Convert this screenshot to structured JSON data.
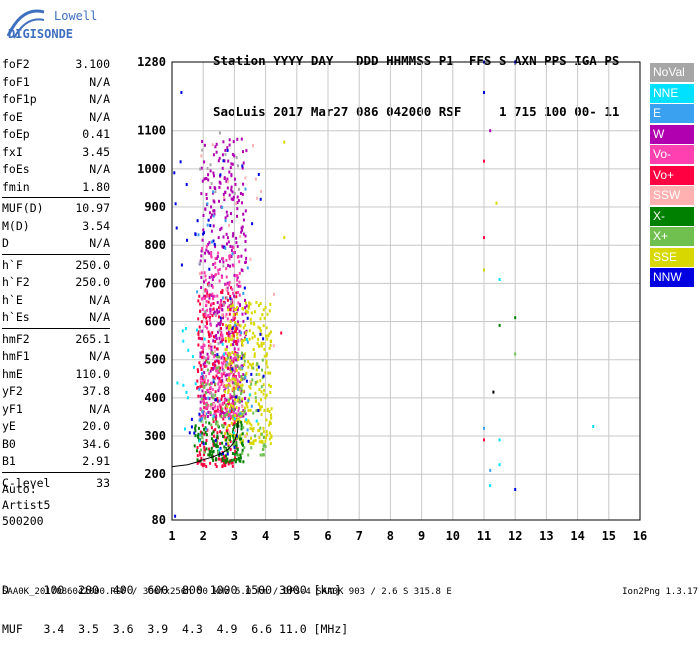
{
  "logo": {
    "top": "Lowell",
    "bottom": "DIGISONDE"
  },
  "header": {
    "line1": "Station YYYY DAY   DDD HHMMSS P1  FFS S AXN PPS IGA PS",
    "line2": "SaoLuis 2017 Mar27 086 042000 RSF     1 715 100 00- 11"
  },
  "params": [
    [
      {
        "k": "foF2",
        "v": "3.100"
      },
      {
        "k": "foF1",
        "v": "N/A"
      },
      {
        "k": "foF1p",
        "v": "N/A"
      },
      {
        "k": "foE",
        "v": "N/A"
      },
      {
        "k": "foEp",
        "v": "0.41"
      },
      {
        "k": "fxI",
        "v": "3.45"
      },
      {
        "k": "foEs",
        "v": "N/A"
      },
      {
        "k": "fmin",
        "v": "1.80"
      }
    ],
    [
      {
        "k": "MUF(D)",
        "v": "10.97"
      },
      {
        "k": "M(D)",
        "v": "3.54"
      },
      {
        "k": "D",
        "v": "N/A"
      }
    ],
    [
      {
        "k": "h`F",
        "v": "250.0"
      },
      {
        "k": "h`F2",
        "v": "250.0"
      },
      {
        "k": "h`E",
        "v": "N/A"
      },
      {
        "k": "h`Es",
        "v": "N/A"
      }
    ],
    [
      {
        "k": "hmF2",
        "v": "265.1"
      },
      {
        "k": "hmF1",
        "v": "N/A"
      },
      {
        "k": "hmE",
        "v": "110.0"
      },
      {
        "k": "yF2",
        "v": "37.8"
      },
      {
        "k": "yF1",
        "v": "N/A"
      },
      {
        "k": "yE",
        "v": "20.0"
      },
      {
        "k": "B0",
        "v": "34.6"
      },
      {
        "k": "B1",
        "v": "2.91"
      }
    ],
    [
      {
        "k": "C-level",
        "v": "33"
      }
    ]
  ],
  "auto": {
    "line1": "Auto:",
    "line2": "Artist5",
    "line3": "500200"
  },
  "legend": [
    {
      "label": "NoVal",
      "color": "#a6a6a6"
    },
    {
      "label": "NNE",
      "color": "#00e0ff"
    },
    {
      "label": "E",
      "color": "#3aa0f0"
    },
    {
      "label": "W",
      "color": "#b000b0"
    },
    {
      "label": "Vo-",
      "color": "#ff40b0"
    },
    {
      "label": "Vo+",
      "color": "#ff0040"
    },
    {
      "label": "SSW",
      "color": "#ffb0b0"
    },
    {
      "label": "X-",
      "color": "#008000"
    },
    {
      "label": "X+",
      "color": "#70c050"
    },
    {
      "label": "SSE",
      "color": "#d8d800"
    },
    {
      "label": "NNW",
      "color": "#0000e0"
    }
  ],
  "muf_table": {
    "line1": "D     100  200  400  600  800 1000 1500 3000 [km]",
    "line2": "MUF   3.4  3.5  3.6  3.9  4.3  4.9  6.6 11.0 [MHz]"
  },
  "footer": {
    "left": "SAA0K_2017086042000.RSF / 300fx256h 50 kHz 5.0 km / DPS-4 SAA0K 903 / 2.6 S 315.8 E",
    "right": "Ion2Png 1.3.17"
  },
  "chart_data": {
    "type": "scatter",
    "title": "",
    "xlabel": "",
    "ylabel": "",
    "xlim": [
      1,
      16
    ],
    "ylim": [
      80,
      1280
    ],
    "x_ticks": [
      1,
      2,
      3,
      4,
      5,
      6,
      7,
      8,
      9,
      10,
      11,
      12,
      13,
      14,
      15,
      16
    ],
    "y_ticks": [
      80,
      200,
      300,
      400,
      500,
      600,
      700,
      800,
      900,
      1000,
      1100,
      1280
    ],
    "grid": true,
    "trace_curve": {
      "x": [
        1.0,
        1.5,
        1.8,
        2.0,
        2.3,
        2.6,
        2.8,
        3.0,
        3.1,
        3.12
      ],
      "y": [
        220,
        225,
        232,
        238,
        245,
        255,
        265,
        285,
        310,
        340
      ]
    },
    "point_clusters": [
      {
        "color": "#b000b0",
        "xr": [
          1.9,
          3.4
        ],
        "yr": [
          350,
          1080
        ],
        "n": 420
      },
      {
        "color": "#ff0040",
        "xr": [
          1.8,
          3.1
        ],
        "yr": [
          220,
          700
        ],
        "n": 280
      },
      {
        "color": "#ff40b0",
        "xr": [
          1.9,
          3.2
        ],
        "yr": [
          350,
          800
        ],
        "n": 220
      },
      {
        "color": "#d8d800",
        "xr": [
          2.7,
          4.2
        ],
        "yr": [
          280,
          650
        ],
        "n": 300
      },
      {
        "color": "#008000",
        "xr": [
          1.7,
          3.3
        ],
        "yr": [
          230,
          340
        ],
        "n": 120
      },
      {
        "color": "#70c050",
        "xr": [
          1.9,
          4.0
        ],
        "yr": [
          250,
          520
        ],
        "n": 120
      },
      {
        "color": "#0000e0",
        "xr": [
          1.0,
          4.0
        ],
        "yr": [
          250,
          1080
        ],
        "n": 60
      },
      {
        "color": "#3aa0f0",
        "xr": [
          1.8,
          3.6
        ],
        "yr": [
          300,
          950
        ],
        "n": 40
      },
      {
        "color": "#00e0ff",
        "xr": [
          1.0,
          3.8
        ],
        "yr": [
          260,
          600
        ],
        "n": 25
      },
      {
        "color": "#ffb0b0",
        "xr": [
          1.8,
          4.4
        ],
        "yr": [
          300,
          1100
        ],
        "n": 35
      },
      {
        "color": "#a6a6a6",
        "xr": [
          1.8,
          3.2
        ],
        "yr": [
          400,
          1100
        ],
        "n": 30
      }
    ],
    "sparse_points": [
      {
        "x": 1.3,
        "y": 1200,
        "c": "#0000e0"
      },
      {
        "x": 11.0,
        "y": 1280,
        "c": "#0000e0"
      },
      {
        "x": 12.0,
        "y": 1280,
        "c": "#0000e0"
      },
      {
        "x": 11.0,
        "y": 1200,
        "c": "#0000e0"
      },
      {
        "x": 11.2,
        "y": 1100,
        "c": "#b000b0"
      },
      {
        "x": 11.0,
        "y": 1020,
        "c": "#ff0040"
      },
      {
        "x": 11.0,
        "y": 820,
        "c": "#ff0040"
      },
      {
        "x": 11.4,
        "y": 910,
        "c": "#d8d800"
      },
      {
        "x": 11.0,
        "y": 735,
        "c": "#d8d800"
      },
      {
        "x": 11.5,
        "y": 710,
        "c": "#00e0ff"
      },
      {
        "x": 11.5,
        "y": 590,
        "c": "#008000"
      },
      {
        "x": 12.0,
        "y": 610,
        "c": "#008000"
      },
      {
        "x": 12.0,
        "y": 515,
        "c": "#70c050"
      },
      {
        "x": 11.3,
        "y": 415,
        "c": "#000000"
      },
      {
        "x": 11.0,
        "y": 290,
        "c": "#ff0040"
      },
      {
        "x": 11.5,
        "y": 290,
        "c": "#00e0ff"
      },
      {
        "x": 11.0,
        "y": 320,
        "c": "#3aa0f0"
      },
      {
        "x": 11.2,
        "y": 210,
        "c": "#3aa0f0"
      },
      {
        "x": 11.5,
        "y": 225,
        "c": "#00e0ff"
      },
      {
        "x": 12.0,
        "y": 160,
        "c": "#0000e0"
      },
      {
        "x": 11.2,
        "y": 170,
        "c": "#00e0ff"
      },
      {
        "x": 14.5,
        "y": 325,
        "c": "#00e0ff"
      },
      {
        "x": 1.1,
        "y": 90,
        "c": "#0000e0"
      },
      {
        "x": 4.6,
        "y": 1070,
        "c": "#d8d800"
      },
      {
        "x": 4.6,
        "y": 820,
        "c": "#d8d800"
      },
      {
        "x": 4.5,
        "y": 570,
        "c": "#ff0040"
      }
    ]
  }
}
